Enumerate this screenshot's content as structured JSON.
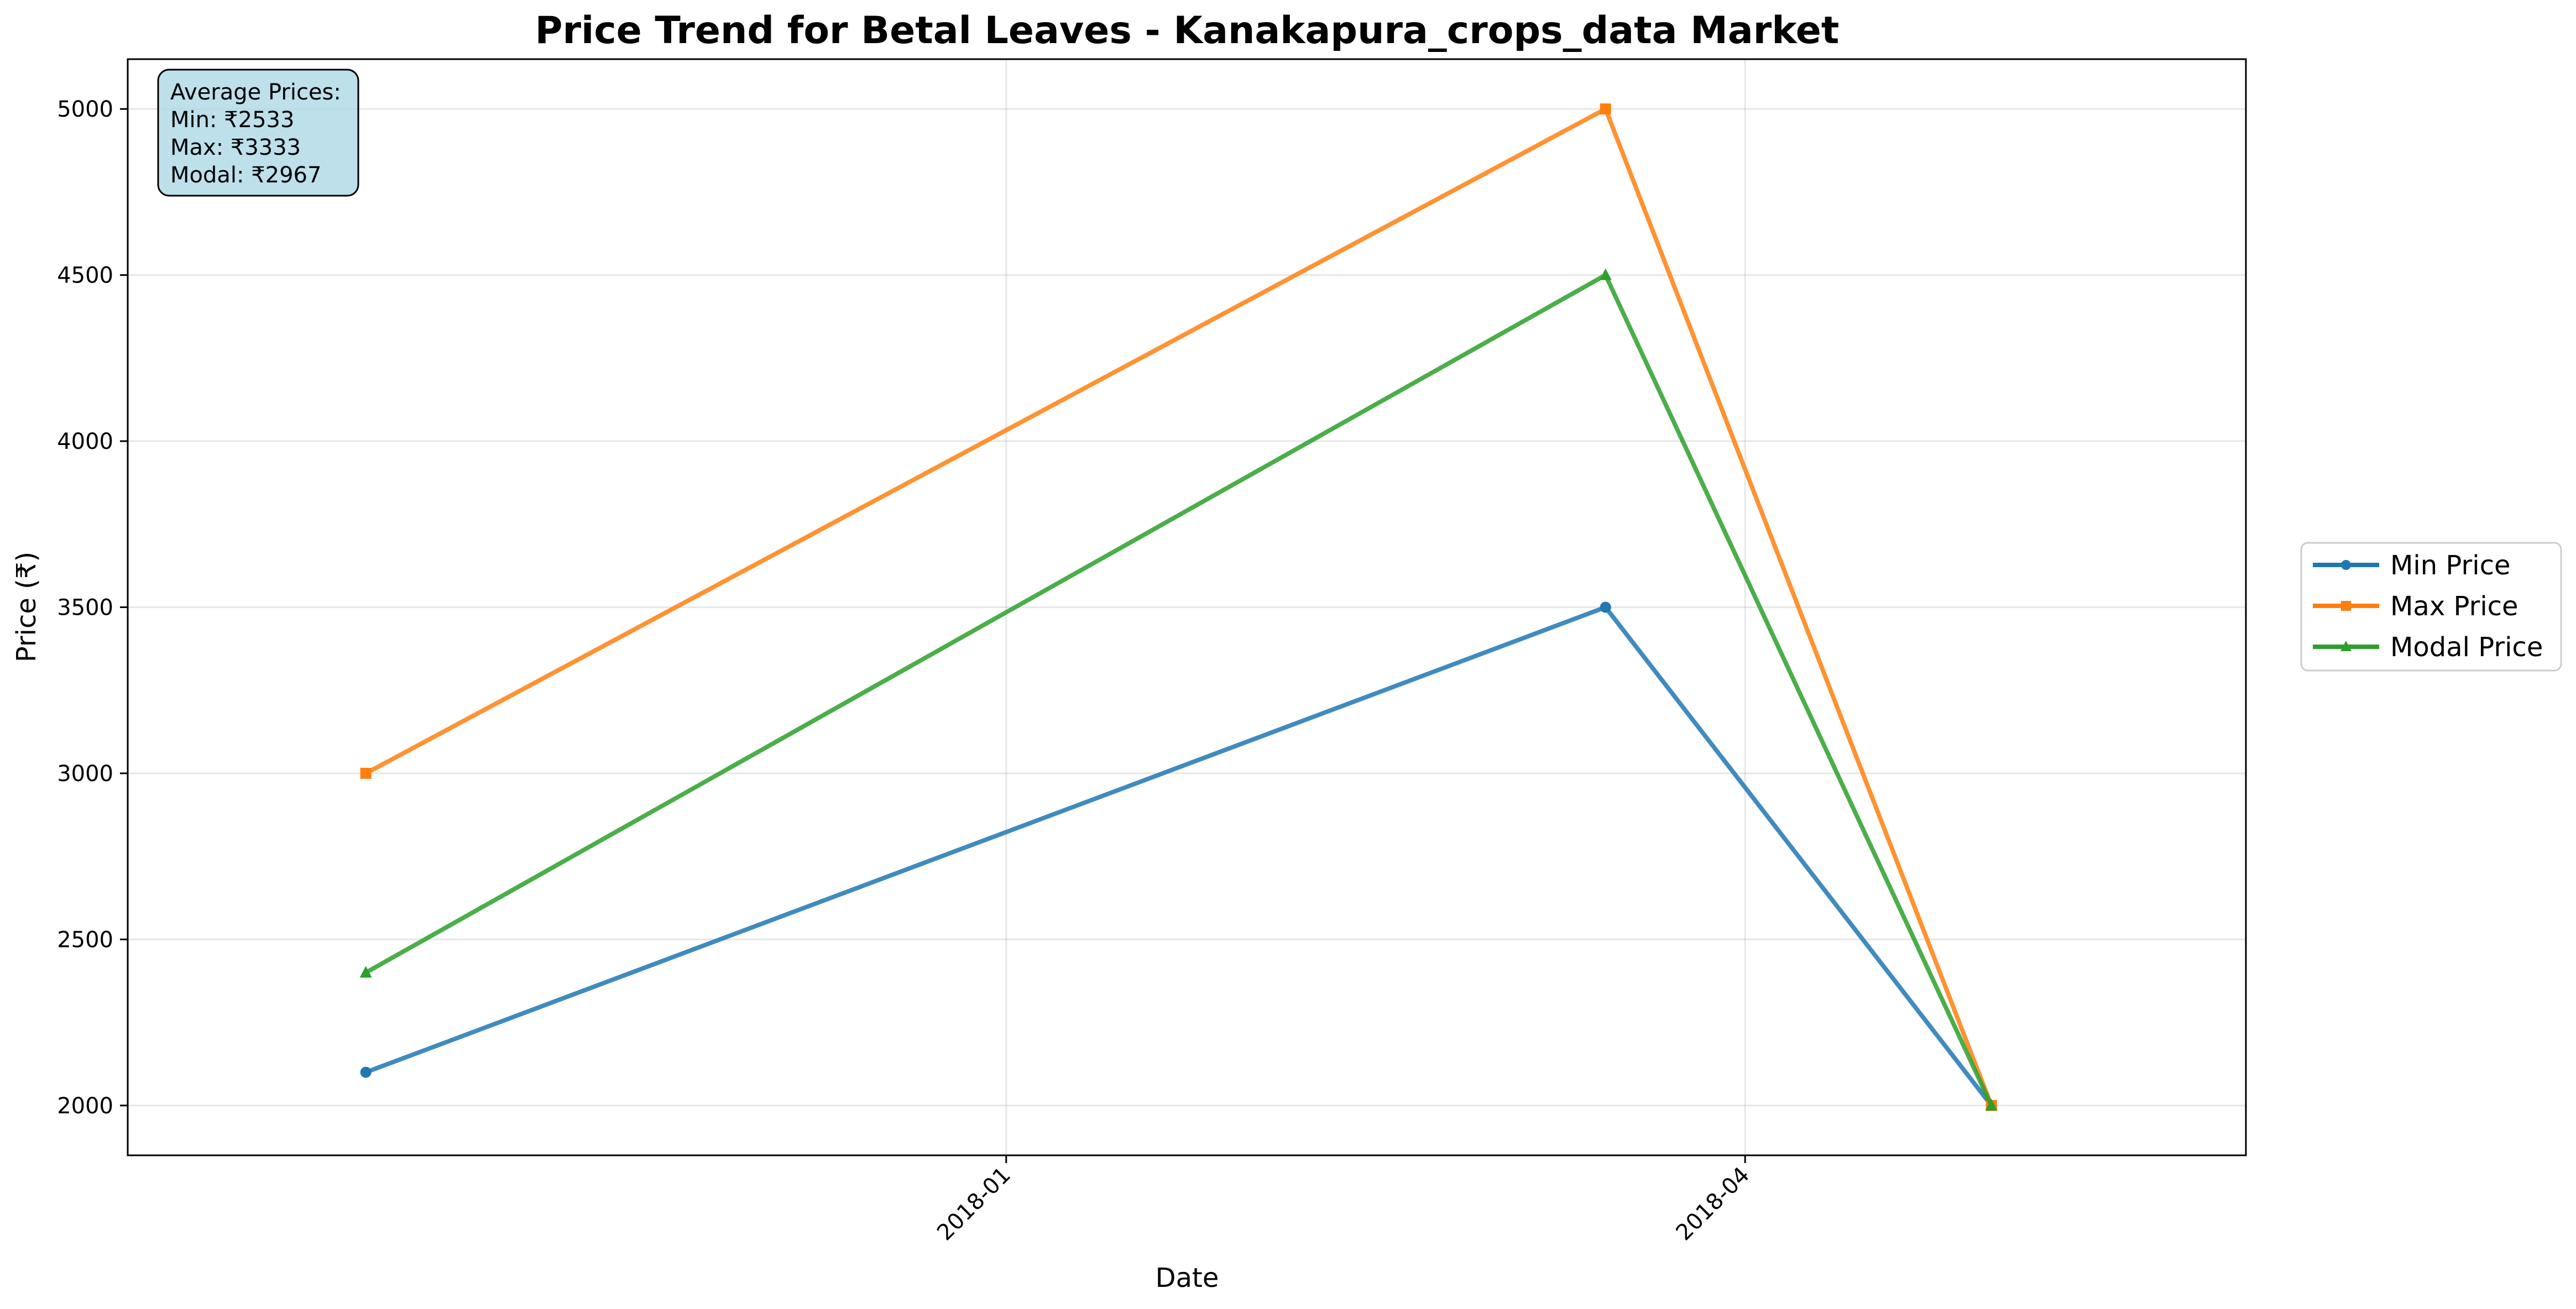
{
  "chart_data": {
    "type": "line",
    "title": "Price Trend for Betal Leaves - Kanakapura_crops_data Market",
    "xlabel": "Date",
    "ylabel": "Price (₹)",
    "x": [
      "2017-10-15",
      "2018-03-15",
      "2018-05-01"
    ],
    "x_ticks": [
      {
        "date": "2018-01-01",
        "label": "2018-01"
      },
      {
        "date": "2018-04-01",
        "label": "2018-04"
      }
    ],
    "xlim": [
      "2017-09-16",
      "2018-06-01"
    ],
    "y_ticks": [
      2000,
      2500,
      3000,
      3500,
      4000,
      4500,
      5000
    ],
    "ylim": [
      1850,
      5150
    ],
    "grid": true,
    "legend_position": "outside-right",
    "series": [
      {
        "name": "Min Price",
        "values": [
          2100,
          3500,
          2000
        ],
        "color": "#1f77b4",
        "marker": "circle"
      },
      {
        "name": "Max Price",
        "values": [
          3000,
          5000,
          2000
        ],
        "color": "#ff7f0e",
        "marker": "square"
      },
      {
        "name": "Modal Price",
        "values": [
          2400,
          4500,
          2000
        ],
        "color": "#2ca02c",
        "marker": "triangle"
      }
    ],
    "stats_box": {
      "lines": [
        "Average Prices:",
        "Min: ₹2533",
        "Max: ₹3333",
        "Modal: ₹2967"
      ],
      "background": "#add8e6"
    }
  }
}
